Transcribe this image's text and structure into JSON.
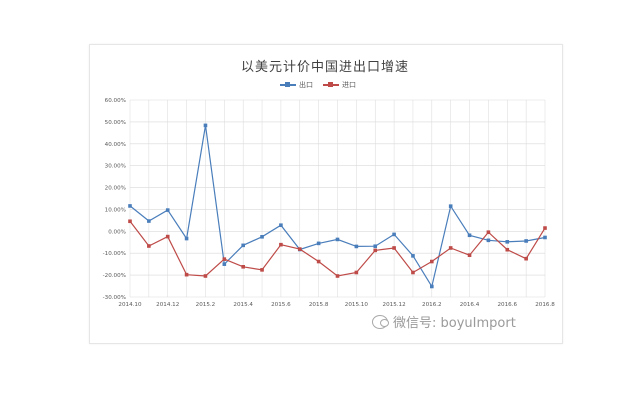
{
  "colors": {
    "export": "#4a7ebb",
    "import": "#be4b48",
    "grid": "#d9d9d9"
  },
  "watermark": {
    "icon": "wechat-icon",
    "text": "微信号: boyuImport"
  },
  "chart_data": {
    "type": "line",
    "title": "以美元计价中国进出口增速",
    "xlabel": "",
    "ylabel": "",
    "legend_position": "top",
    "grid": true,
    "ylim": [
      -0.3,
      0.6
    ],
    "y_ticks": [
      "60.00%",
      "50.00%",
      "40.00%",
      "30.00%",
      "20.00%",
      "10.00%",
      "0.00%",
      "-10.00%",
      "-20.00%",
      "-30.00%"
    ],
    "x": [
      "2014.10",
      "2014.11",
      "2014.12",
      "2015.1",
      "2015.2",
      "2015.3",
      "2015.4",
      "2015.5",
      "2015.6",
      "2015.7",
      "2015.8",
      "2015.9",
      "2015.10",
      "2015.11",
      "2015.12",
      "2016.1",
      "2016.2",
      "2016.3",
      "2016.4",
      "2016.5",
      "2016.6",
      "2016.7",
      "2016.8"
    ],
    "x_tick_labels": [
      "2014.10",
      "2014.12",
      "2015.2",
      "2015.4",
      "2015.6",
      "2015.8",
      "2015.10",
      "2015.12",
      "2016.2",
      "2016.4",
      "2016.6",
      "2016.8"
    ],
    "series": [
      {
        "name": "出口",
        "color": "#4a7ebb",
        "values": [
          0.116,
          0.047,
          0.097,
          -0.033,
          0.484,
          -0.15,
          -0.064,
          -0.025,
          0.028,
          -0.083,
          -0.055,
          -0.037,
          -0.069,
          -0.068,
          -0.014,
          -0.112,
          -0.252,
          0.115,
          -0.018,
          -0.041,
          -0.048,
          -0.044,
          -0.028
        ]
      },
      {
        "name": "进口",
        "color": "#be4b48",
        "values": [
          0.046,
          -0.067,
          -0.024,
          -0.198,
          -0.204,
          -0.127,
          -0.162,
          -0.176,
          -0.061,
          -0.081,
          -0.138,
          -0.204,
          -0.188,
          -0.087,
          -0.076,
          -0.188,
          -0.138,
          -0.076,
          -0.109,
          -0.004,
          -0.084,
          -0.125,
          0.015
        ]
      }
    ]
  }
}
